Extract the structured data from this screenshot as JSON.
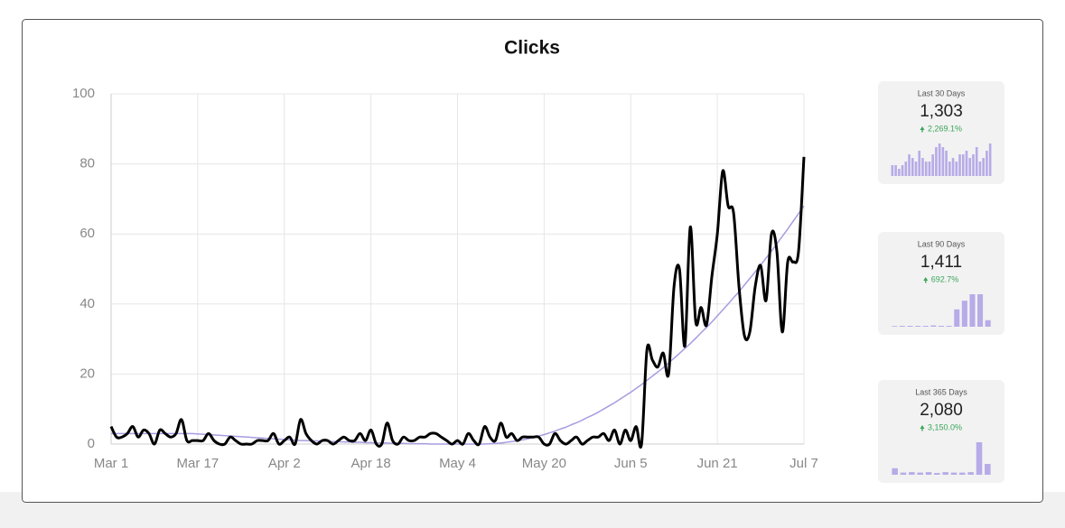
{
  "chart_data": {
    "type": "line",
    "title": "Clicks",
    "categories": [
      "Mar 1",
      null,
      null,
      null,
      null,
      null,
      null,
      null,
      null,
      null,
      null,
      null,
      null,
      null,
      null,
      null,
      "Mar 17",
      null,
      null,
      null,
      null,
      null,
      null,
      null,
      null,
      null,
      null,
      null,
      null,
      null,
      null,
      null,
      "Apr 2",
      null,
      null,
      null,
      null,
      null,
      null,
      null,
      null,
      null,
      null,
      null,
      null,
      null,
      null,
      null,
      "Apr 18",
      null,
      null,
      null,
      null,
      null,
      null,
      null,
      null,
      null,
      null,
      null,
      null,
      null,
      null,
      null,
      "May 4",
      null,
      null,
      null,
      null,
      null,
      null,
      null,
      null,
      null,
      null,
      null,
      null,
      null,
      null,
      null,
      "May 20",
      null,
      null,
      null,
      null,
      null,
      null,
      null,
      null,
      null,
      null,
      null,
      null,
      null,
      null,
      null,
      "Jun 5",
      null,
      null,
      null,
      null,
      null,
      null,
      null,
      null,
      null,
      null,
      null,
      null,
      null,
      null,
      null,
      "Jun 21",
      null,
      null,
      null,
      null,
      null,
      null,
      null,
      null,
      null,
      null,
      null,
      null,
      null,
      null,
      null,
      "Jul 7"
    ],
    "series": [
      {
        "color": "#000000",
        "values": [
          5,
          2,
          2,
          3,
          5,
          2,
          4,
          3,
          0,
          4,
          3,
          2,
          3,
          7,
          1,
          1,
          1,
          1,
          3,
          1,
          0,
          0,
          2,
          1,
          0,
          0,
          0,
          1,
          1,
          1,
          3,
          0,
          1,
          2,
          0,
          7,
          3,
          1,
          0,
          1,
          1,
          0,
          1,
          2,
          1,
          1,
          3,
          1,
          4,
          0,
          0,
          6,
          1,
          0,
          2,
          1,
          1,
          2,
          2,
          3,
          3,
          2,
          1,
          0,
          1,
          0,
          3,
          1,
          0,
          5,
          2,
          1,
          6,
          2,
          3,
          1,
          2,
          2,
          2,
          2,
          0,
          0,
          3,
          1,
          0,
          1,
          2,
          0,
          1,
          2,
          2,
          3,
          1,
          4,
          0,
          4,
          1,
          5,
          0,
          27,
          24,
          22,
          26,
          20,
          45,
          50,
          28,
          62,
          35,
          39,
          34,
          48,
          60,
          78,
          68,
          66,
          45,
          31,
          32,
          45,
          51,
          41,
          60,
          55,
          32,
          52,
          52,
          55,
          82
        ]
      },
      {
        "color": "#a99be0",
        "values": [
          3,
          3,
          3,
          3,
          3,
          3,
          3,
          3,
          3,
          3,
          3,
          3,
          3,
          3,
          3,
          3,
          2.9,
          2.8,
          2.7,
          2.6,
          2.5,
          2.4,
          2.3,
          2.2,
          2.1,
          2,
          1.9,
          1.8,
          1.7,
          1.6,
          1.5,
          1.4,
          1.3,
          1.2,
          1.1,
          1,
          1,
          0.9,
          0.9,
          0.8,
          0.8,
          0.7,
          0.7,
          0.6,
          0.6,
          0.5,
          0.5,
          0.4,
          0.4,
          0.3,
          0.3,
          0.3,
          0.2,
          0.2,
          0.2,
          0.1,
          0.1,
          0.1,
          0.1,
          0,
          0,
          0,
          0,
          0,
          0,
          0,
          0,
          0,
          0,
          0,
          0.1,
          0.2,
          0.3,
          0.5,
          0.7,
          0.9,
          1.2,
          1.5,
          1.9,
          2.3,
          2.7,
          3.2,
          3.7,
          4.3,
          4.8,
          5.5,
          6.1,
          6.8,
          7.6,
          8.3,
          9.1,
          10,
          10.9,
          11.8,
          12.8,
          13.8,
          14.8,
          15.9,
          17,
          18.2,
          19.4,
          20.6,
          21.8,
          23.2,
          24.5,
          25.9,
          27.3,
          28.7,
          30.2,
          31.8,
          33.3,
          34.9,
          36.6,
          38.3,
          40,
          41.8,
          43.5,
          45.4,
          47.3,
          49.2,
          51.1,
          53.1,
          55.1,
          57.2,
          59.3,
          61.4,
          63.6,
          65.8,
          68
        ]
      }
    ],
    "ylim": [
      0,
      100
    ],
    "yticks": [
      0,
      20,
      40,
      60,
      80,
      100
    ],
    "grid": true
  },
  "cards": [
    {
      "label": "Last 30 Days",
      "value": "1,303",
      "change": "2,269.1%",
      "color": "#b7abe8",
      "bars": [
        3,
        3,
        2,
        3,
        4,
        6,
        5,
        4,
        7,
        5,
        4,
        4,
        6,
        8,
        9,
        8,
        7,
        4,
        5,
        4,
        6,
        6,
        7,
        5,
        6,
        8,
        4,
        5,
        7,
        9
      ]
    },
    {
      "label": "Last 90 Days",
      "value": "1,411",
      "change": "692.7%",
      "color": "#b7abe8",
      "bars": [
        0,
        0.2,
        0.2,
        0.2,
        0.2,
        0.3,
        0.2,
        0.2,
        4,
        6,
        7.5,
        7.5,
        1.5
      ]
    },
    {
      "label": "Last 365 Days",
      "value": "2,080",
      "change": "3,150.0%",
      "color": "#b7abe8",
      "bars": [
        1.5,
        0.5,
        0.6,
        0.5,
        0.6,
        0.4,
        0.6,
        0.5,
        0.5,
        0.6,
        7.5,
        2.5
      ]
    }
  ]
}
